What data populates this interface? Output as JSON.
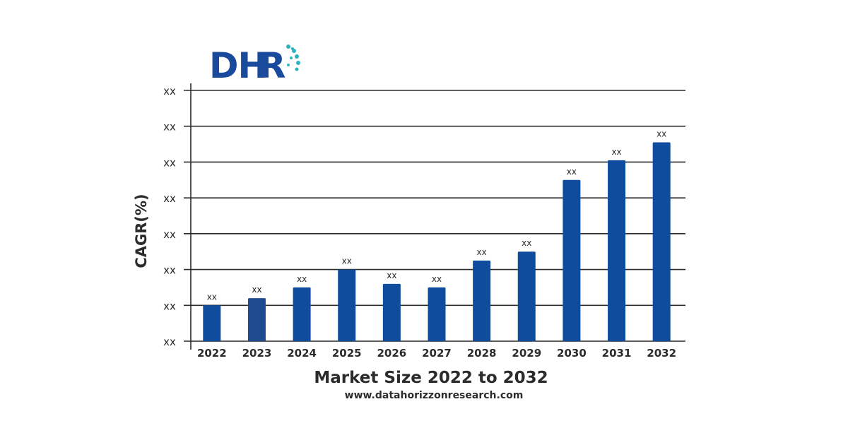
{
  "logo": {
    "text_dark": "DH",
    "text_accent": "R",
    "color_dark": "#1a4a9c",
    "color_accent": "#2bb3c0"
  },
  "chart_data": {
    "type": "bar",
    "categories": [
      "2022",
      "2023",
      "2024",
      "2025",
      "2026",
      "2027",
      "2028",
      "2029",
      "2030",
      "2031",
      "2032"
    ],
    "values": [
      1.0,
      1.2,
      1.5,
      2.0,
      1.6,
      1.5,
      2.25,
      2.5,
      4.5,
      5.05,
      5.55
    ],
    "data_labels": [
      "xx",
      "xx",
      "xx",
      "xx",
      "xx",
      "xx",
      "xx",
      "xx",
      "xx",
      "xx",
      "xx"
    ],
    "y_tick_labels": [
      "xx",
      "xx",
      "xx",
      "xx",
      "xx",
      "xx",
      "xx",
      "xx"
    ],
    "ylim": [
      0,
      7
    ],
    "xlabel": "Market Size 2022 to 2032",
    "ylabel": "CAGR(%)",
    "grid": true,
    "bar_color": "#0f4c9e",
    "highlight_color": "#1f4a8f"
  },
  "footer": {
    "url": "www.datahorizzonresearch.com"
  }
}
